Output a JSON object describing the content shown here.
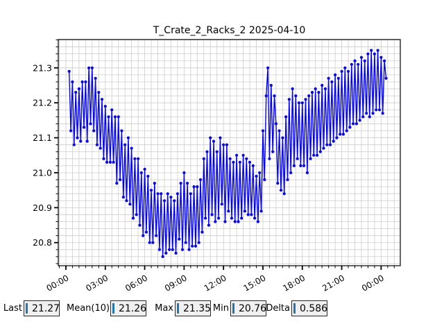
{
  "title": "T_Crate_2_Racks_2 2025-04-10",
  "colors": {
    "line": "#0000ff",
    "grid": "#cccccc",
    "frame": "#000000",
    "field_bg": "#f0f0f0",
    "field_border": "#262626",
    "cursor_blue": "#1f77b4"
  },
  "chart_data": {
    "type": "line",
    "title": "T_Crate_2_Racks_2 2025-04-10",
    "xlabel": "",
    "ylabel": "",
    "xlim": [
      -0.58,
      25.46
    ],
    "ylim": [
      20.734,
      21.381
    ],
    "x_ticks": [
      0,
      3,
      6,
      9,
      12,
      15,
      18,
      21,
      24
    ],
    "x_tick_labels": [
      "00:00",
      "03:00",
      "06:00",
      "09:00",
      "12:00",
      "15:00",
      "18:00",
      "21:00",
      "00:00"
    ],
    "y_ticks": [
      20.8,
      20.9,
      21.0,
      21.1,
      21.2,
      21.3
    ],
    "y_tick_labels": [
      "20.8",
      "20.9",
      "21.0",
      "21.1",
      "21.2",
      "21.3"
    ],
    "x_minor_step": 0.5,
    "y_minor_step": 0.02,
    "grid": "minor-both",
    "legend": "none",
    "marker": "circle",
    "series": [
      {
        "name": "T_Crate_2_Racks_2",
        "x_start": 0.25,
        "x_step": 0.125,
        "x_unit": "hours",
        "values": [
          21.29,
          21.12,
          21.26,
          21.08,
          21.23,
          21.1,
          21.24,
          21.09,
          21.26,
          21.13,
          21.26,
          21.09,
          21.3,
          21.14,
          21.3,
          21.12,
          21.27,
          21.08,
          21.23,
          21.07,
          21.21,
          21.04,
          21.19,
          21.03,
          21.16,
          21.03,
          21.18,
          21.03,
          21.16,
          20.97,
          21.16,
          20.98,
          21.12,
          20.93,
          21.08,
          20.92,
          21.1,
          20.91,
          21.07,
          20.87,
          21.04,
          20.88,
          21.04,
          20.85,
          21.0,
          20.82,
          21.01,
          20.83,
          20.99,
          20.8,
          20.95,
          20.8,
          20.97,
          20.82,
          20.94,
          20.78,
          20.94,
          20.76,
          20.92,
          20.77,
          20.94,
          20.78,
          20.93,
          20.78,
          20.92,
          20.77,
          20.94,
          20.81,
          20.97,
          20.78,
          21.0,
          20.8,
          20.97,
          20.78,
          20.94,
          20.79,
          20.96,
          20.79,
          20.96,
          20.8,
          20.98,
          20.83,
          21.04,
          20.87,
          21.06,
          20.85,
          21.1,
          20.88,
          21.09,
          20.86,
          21.06,
          20.87,
          21.1,
          20.91,
          21.08,
          20.86,
          21.08,
          20.89,
          21.04,
          20.87,
          21.03,
          20.86,
          21.05,
          20.86,
          21.03,
          20.87,
          21.05,
          20.89,
          21.04,
          20.88,
          21.03,
          20.88,
          21.02,
          20.87,
          20.99,
          20.86,
          21.0,
          20.89,
          21.12,
          20.98,
          21.22,
          21.3,
          21.04,
          21.25,
          21.06,
          21.22,
          21.14,
          20.97,
          21.12,
          20.95,
          21.1,
          20.94,
          21.16,
          20.98,
          21.21,
          21.0,
          21.24,
          21.02,
          21.22,
          21.04,
          21.2,
          21.02,
          21.2,
          21.02,
          21.21,
          21.0,
          21.22,
          21.04,
          21.23,
          21.05,
          21.24,
          21.05,
          21.23,
          21.06,
          21.25,
          21.07,
          21.24,
          21.08,
          21.27,
          21.08,
          21.26,
          21.09,
          21.28,
          21.1,
          21.27,
          21.11,
          21.29,
          21.11,
          21.3,
          21.12,
          21.29,
          21.13,
          21.31,
          21.14,
          21.32,
          21.14,
          21.31,
          21.15,
          21.33,
          21.16,
          21.32,
          21.17,
          21.34,
          21.16,
          21.35,
          21.17,
          21.34,
          21.18,
          21.35,
          21.18,
          21.33,
          21.17,
          21.32,
          21.27
        ]
      }
    ]
  },
  "stats": [
    {
      "label": "Last",
      "value": "21.27"
    },
    {
      "label": "Mean(10)",
      "value": "21.26"
    },
    {
      "label": "Max",
      "value": "21.35"
    },
    {
      "label": "Min",
      "value": "20.76"
    },
    {
      "label": "Delta",
      "value": "0.586"
    }
  ]
}
